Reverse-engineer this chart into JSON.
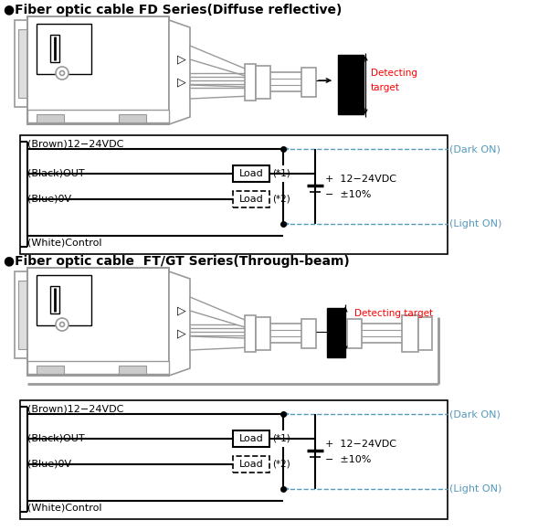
{
  "bg_color": "#ffffff",
  "border_color": "#000000",
  "gray_color": "#999999",
  "blue_color": "#5599bb",
  "title1": "●Fiber optic cable FD Series(Diffuse reflective)",
  "title2": "●Fiber optic cable  FT/GT Series(Through-beam)",
  "label_brown": "(Brown)12−24VDC",
  "label_black": "(Black)OUT",
  "label_blue": "(Blue)0V",
  "label_white": "(White)Control",
  "label_load1": "Load",
  "label_star1": "(*1)",
  "label_load2": "Load",
  "label_star2": "(*2)",
  "label_plus": "+  12−24VDC",
  "label_minus": "−  ±10%",
  "label_dark": "(Dark ON)",
  "label_light": "(Light ON)",
  "label_detecting1a": "Detecting",
  "label_detecting1b": "target",
  "label_detecting2": "Detecting target",
  "figsize": [
    6.12,
    5.81
  ],
  "dpi": 100
}
